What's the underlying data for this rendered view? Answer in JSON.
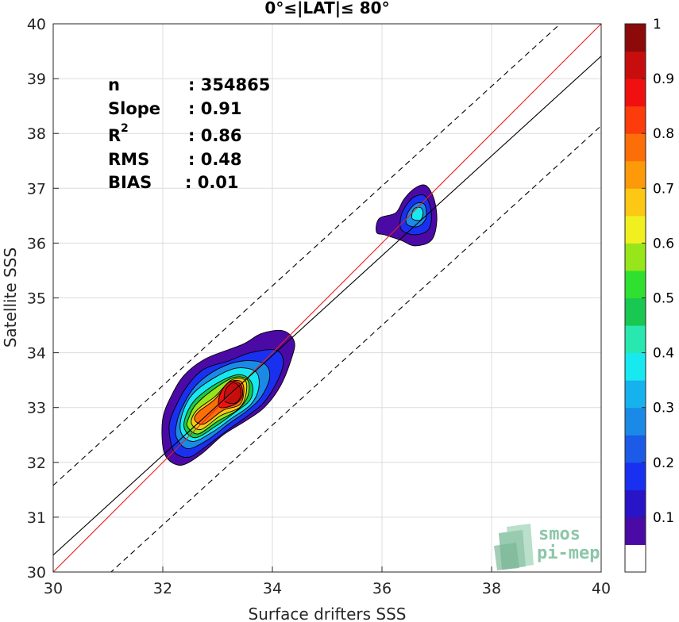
{
  "chart_data": {
    "type": "contour-density",
    "title": "0°≤|LAT|≤ 80°",
    "xlabel": "Surface drifters SSS",
    "ylabel": "Satellite SSS",
    "xlim": [
      30,
      40
    ],
    "ylim": [
      30,
      40
    ],
    "xticks": [
      "30",
      "32",
      "34",
      "36",
      "38",
      "40"
    ],
    "yticks": [
      "30",
      "31",
      "32",
      "33",
      "34",
      "35",
      "36",
      "37",
      "38",
      "39",
      "40"
    ],
    "grid": true,
    "stats": [
      {
        "label": "n",
        "value": ": 354865"
      },
      {
        "label": "Slope",
        "value": ": 0.91"
      },
      {
        "label": "R",
        "sup": "2",
        "value": ": 0.86"
      },
      {
        "label": "RMS",
        "value": ": 0.48"
      },
      {
        "label": "BIAS",
        "value": ": 0.01"
      }
    ],
    "lines": [
      {
        "role": "identity",
        "color": "#e8201a",
        "style": "solid",
        "slope": 1,
        "intercept": 0
      },
      {
        "role": "regression",
        "color": "#000000",
        "style": "solid",
        "slope": 0.91,
        "intercept": 3.01
      },
      {
        "role": "upper-bound",
        "color": "#000000",
        "style": "dashed",
        "slope": 0.91,
        "intercept": 4.28
      },
      {
        "role": "lower-bound",
        "color": "#000000",
        "style": "dashed",
        "slope": 0.91,
        "intercept": 1.74
      }
    ],
    "colorbar": {
      "ticks": [
        "0.1",
        "0.2",
        "0.3",
        "0.4",
        "0.5",
        "0.6",
        "0.7",
        "0.8",
        "0.9",
        "1"
      ],
      "range": [
        0,
        1
      ],
      "colors": [
        "#ffffff",
        "#4b0aa5",
        "#2a14c8",
        "#1a30f0",
        "#1c5ae8",
        "#1b8ae6",
        "#16b2ee",
        "#18e8f0",
        "#28e8b0",
        "#18c850",
        "#30e030",
        "#96e619",
        "#f0f020",
        "#fcc814",
        "#fc9a0a",
        "#fc6e08",
        "#fc3c0a",
        "#f01010",
        "#c80d0d",
        "#8c0a0a"
      ]
    },
    "clusters": [
      {
        "name": "main",
        "levels": [
          {
            "level": 0.05,
            "points": [
              [
                32.0,
                32.3
              ],
              [
                32.1,
                32.05
              ],
              [
                32.35,
                31.95
              ],
              [
                32.7,
                32.15
              ],
              [
                33.1,
                32.5
              ],
              [
                33.5,
                32.75
              ],
              [
                33.85,
                33.0
              ],
              [
                34.15,
                33.4
              ],
              [
                34.35,
                33.9
              ],
              [
                34.4,
                34.2
              ],
              [
                34.2,
                34.4
              ],
              [
                33.8,
                34.35
              ],
              [
                33.45,
                34.15
              ],
              [
                32.8,
                33.9
              ],
              [
                32.4,
                33.6
              ],
              [
                32.15,
                33.2
              ],
              [
                32.0,
                32.8
              ]
            ]
          },
          {
            "level": 0.15,
            "points": [
              [
                32.15,
                32.35
              ],
              [
                32.25,
                32.15
              ],
              [
                32.5,
                32.1
              ],
              [
                32.8,
                32.3
              ],
              [
                33.2,
                32.6
              ],
              [
                33.55,
                32.85
              ],
              [
                33.85,
                33.1
              ],
              [
                34.1,
                33.5
              ],
              [
                34.2,
                33.85
              ],
              [
                34.05,
                34.05
              ],
              [
                33.6,
                34.0
              ],
              [
                33.2,
                33.85
              ],
              [
                32.75,
                33.7
              ],
              [
                32.45,
                33.4
              ],
              [
                32.25,
                33.05
              ],
              [
                32.12,
                32.7
              ]
            ]
          },
          {
            "level": 0.25,
            "points": [
              [
                32.25,
                32.45
              ],
              [
                32.45,
                32.25
              ],
              [
                32.8,
                32.4
              ],
              [
                33.2,
                32.7
              ],
              [
                33.55,
                32.95
              ],
              [
                33.8,
                33.2
              ],
              [
                33.95,
                33.55
              ],
              [
                33.85,
                33.8
              ],
              [
                33.45,
                33.85
              ],
              [
                33.0,
                33.7
              ],
              [
                32.6,
                33.4
              ],
              [
                32.35,
                33.0
              ],
              [
                32.25,
                32.7
              ]
            ]
          },
          {
            "level": 0.35,
            "points": [
              [
                32.33,
                32.55
              ],
              [
                32.55,
                32.38
              ],
              [
                32.9,
                32.55
              ],
              [
                33.25,
                32.8
              ],
              [
                33.6,
                33.05
              ],
              [
                33.75,
                33.35
              ],
              [
                33.7,
                33.65
              ],
              [
                33.35,
                33.72
              ],
              [
                32.95,
                33.55
              ],
              [
                32.55,
                33.25
              ],
              [
                32.36,
                32.9
              ]
            ]
          },
          {
            "level": 0.45,
            "points": [
              [
                32.4,
                32.6
              ],
              [
                32.6,
                32.45
              ],
              [
                32.95,
                32.65
              ],
              [
                33.3,
                32.9
              ],
              [
                33.6,
                33.15
              ],
              [
                33.62,
                33.45
              ],
              [
                33.4,
                33.6
              ],
              [
                33.0,
                33.45
              ],
              [
                32.6,
                33.15
              ],
              [
                32.42,
                32.85
              ]
            ]
          },
          {
            "level": 0.55,
            "points": [
              [
                32.45,
                32.65
              ],
              [
                32.65,
                32.52
              ],
              [
                33.0,
                32.75
              ],
              [
                33.35,
                32.95
              ],
              [
                33.55,
                33.2
              ],
              [
                33.55,
                33.5
              ],
              [
                33.3,
                33.55
              ],
              [
                32.95,
                33.35
              ],
              [
                32.6,
                33.05
              ],
              [
                32.47,
                32.8
              ]
            ]
          },
          {
            "level": 0.65,
            "points": [
              [
                32.52,
                32.72
              ],
              [
                32.7,
                32.6
              ],
              [
                33.05,
                32.85
              ],
              [
                33.4,
                33.0
              ],
              [
                33.52,
                33.25
              ],
              [
                33.5,
                33.5
              ],
              [
                33.25,
                33.5
              ],
              [
                32.95,
                33.2
              ],
              [
                32.62,
                32.95
              ]
            ]
          },
          {
            "level": 0.75,
            "points": [
              [
                32.58,
                32.78
              ],
              [
                32.75,
                32.7
              ],
              [
                33.1,
                32.95
              ],
              [
                33.4,
                33.05
              ],
              [
                33.48,
                33.3
              ],
              [
                33.42,
                33.48
              ],
              [
                33.2,
                33.45
              ],
              [
                32.95,
                33.15
              ],
              [
                32.65,
                32.92
              ]
            ]
          },
          {
            "level": 0.85,
            "points": [
              [
                33.05,
                33.0
              ],
              [
                33.3,
                33.05
              ],
              [
                33.45,
                33.2
              ],
              [
                33.42,
                33.42
              ],
              [
                33.25,
                33.48
              ],
              [
                33.1,
                33.35
              ],
              [
                33.02,
                33.15
              ]
            ]
          },
          {
            "level": 0.93,
            "points": [
              [
                33.15,
                33.1
              ],
              [
                33.32,
                33.08
              ],
              [
                33.42,
                33.2
              ],
              [
                33.4,
                33.38
              ],
              [
                33.28,
                33.45
              ],
              [
                33.16,
                33.35
              ],
              [
                33.12,
                33.2
              ]
            ]
          }
        ]
      },
      {
        "name": "secondary",
        "levels": [
          {
            "level": 0.05,
            "points": [
              [
                35.9,
                36.2
              ],
              [
                36.05,
                36.15
              ],
              [
                36.35,
                36.05
              ],
              [
                36.6,
                35.95
              ],
              [
                36.9,
                36.05
              ],
              [
                37.0,
                36.4
              ],
              [
                36.95,
                36.8
              ],
              [
                36.8,
                37.05
              ],
              [
                36.6,
                37.0
              ],
              [
                36.4,
                36.8
              ],
              [
                36.25,
                36.55
              ],
              [
                35.95,
                36.45
              ]
            ]
          },
          {
            "level": 0.15,
            "points": [
              [
                36.35,
                36.25
              ],
              [
                36.6,
                36.15
              ],
              [
                36.85,
                36.25
              ],
              [
                36.9,
                36.55
              ],
              [
                36.8,
                36.85
              ],
              [
                36.6,
                36.85
              ],
              [
                36.45,
                36.7
              ],
              [
                36.35,
                36.5
              ]
            ]
          },
          {
            "level": 0.25,
            "points": [
              [
                36.45,
                36.35
              ],
              [
                36.65,
                36.3
              ],
              [
                36.8,
                36.45
              ],
              [
                36.78,
                36.7
              ],
              [
                36.62,
                36.72
              ],
              [
                36.47,
                36.55
              ]
            ]
          },
          {
            "level": 0.35,
            "points": [
              [
                36.55,
                36.45
              ],
              [
                36.7,
                36.42
              ],
              [
                36.75,
                36.55
              ],
              [
                36.7,
                36.65
              ],
              [
                36.58,
                36.62
              ]
            ]
          }
        ]
      }
    ]
  },
  "logo": {
    "line1": "smos",
    "line2": "pi-mep"
  }
}
